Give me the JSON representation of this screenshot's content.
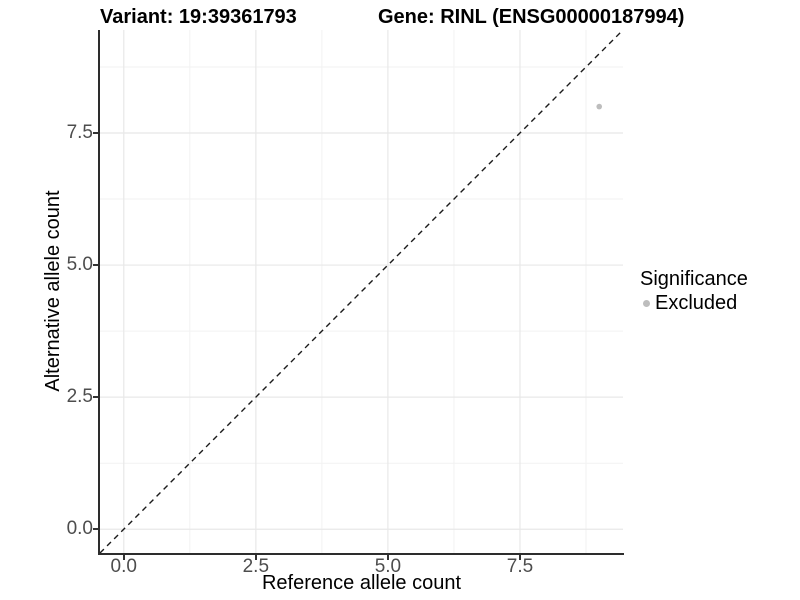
{
  "title": {
    "left": "Variant: 19:39361793",
    "right": "Gene: RINL (ENSG00000187994)"
  },
  "chart_data": {
    "type": "scatter",
    "xlabel": "Reference allele count",
    "ylabel": "Alternative allele count",
    "xlim": [
      -0.45,
      9.45
    ],
    "ylim": [
      -0.45,
      9.45
    ],
    "x_ticks": [
      0.0,
      2.5,
      5.0,
      7.5
    ],
    "y_ticks": [
      0.0,
      2.5,
      5.0,
      7.5
    ],
    "x_tick_labels": [
      "0.0",
      "2.5",
      "5.0",
      "7.5"
    ],
    "y_tick_labels": [
      "0.0",
      "2.5",
      "5.0",
      "7.5"
    ],
    "minor_ticks": [
      1.25,
      3.75,
      6.25,
      8.75
    ],
    "grid": "major+minor",
    "points": [
      {
        "x": 9,
        "y": 8,
        "series": "Excluded"
      }
    ],
    "reference_line": {
      "style": "dashed",
      "equation": "y = x"
    },
    "legend": {
      "title": "Significance",
      "position": "right",
      "entries": [
        {
          "label": "Excluded",
          "marker": "circle",
          "color": "#bdbdbd"
        }
      ]
    }
  },
  "colors": {
    "background": "#ffffff",
    "grid_major": "#e8e8e8",
    "grid_minor": "#f2f2f2",
    "axis_line": "#2d2d2d",
    "tick_mark": "#333333",
    "tick_label": "#4d4d4d",
    "dashed_line": "#1a1a1a",
    "point": "#bdbdbd"
  }
}
